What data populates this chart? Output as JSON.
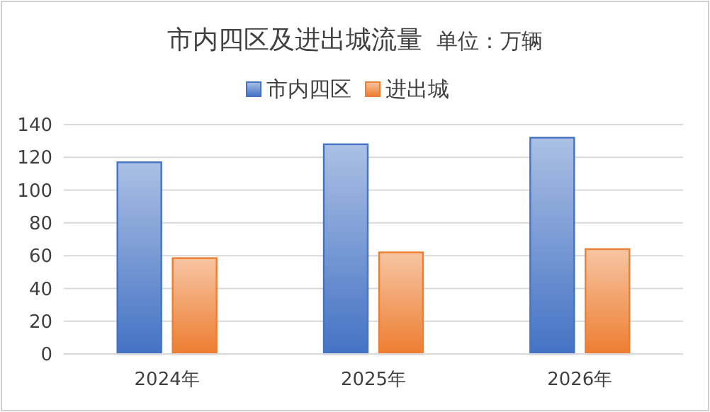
{
  "chart_data": {
    "type": "bar",
    "title": "市内四区及进出城流量",
    "subtitle": "单位：万辆",
    "categories": [
      "2024年",
      "2025年",
      "2026年"
    ],
    "series": [
      {
        "name": "市内四区",
        "color": "#4472c4",
        "values": [
          117,
          128,
          132
        ]
      },
      {
        "name": "进出城",
        "color": "#ed7d31",
        "values": [
          58.5,
          62,
          64
        ]
      }
    ],
    "ylim": [
      0,
      140
    ],
    "yticks": [
      0,
      20,
      40,
      60,
      80,
      100,
      120,
      140
    ],
    "grid": "y",
    "legend": "top"
  }
}
